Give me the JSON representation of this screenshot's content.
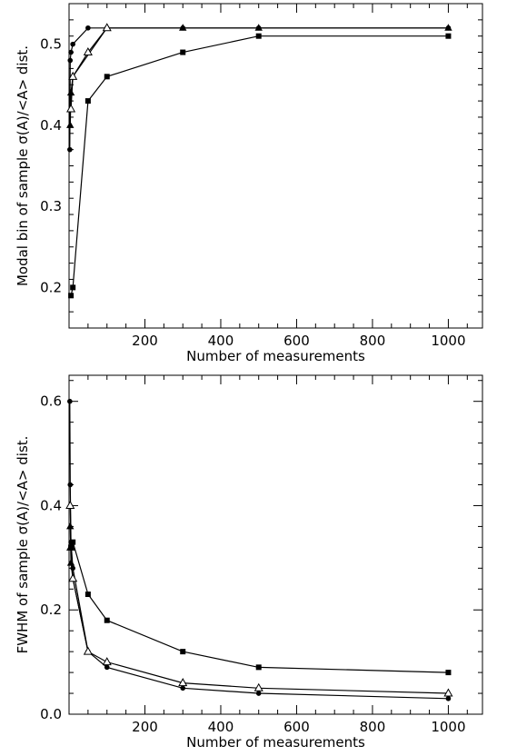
{
  "chart_data": [
    {
      "type": "line",
      "xlabel": "Number of measurements",
      "ylabel": "Modal bin of sample σ(A)/<A> dist.",
      "xlim": [
        0,
        1090
      ],
      "ylim": [
        0.15,
        0.55
      ],
      "xticks": [
        200,
        400,
        600,
        800,
        1000
      ],
      "yticks": [
        0.2,
        0.3,
        0.4,
        0.5
      ],
      "grid": false,
      "series": [
        {
          "marker": "circle-filled",
          "x": [
            2,
            3,
            5,
            10,
            50,
            100,
            300,
            500,
            1000
          ],
          "y": [
            0.37,
            0.48,
            0.49,
            0.5,
            0.52,
            0.52,
            0.52,
            0.52,
            0.52
          ]
        },
        {
          "marker": "triangle-filled",
          "x": [
            3,
            5,
            10,
            100,
            300,
            500,
            1000
          ],
          "y": [
            0.4,
            0.44,
            0.46,
            0.52,
            0.52,
            0.52,
            0.52
          ]
        },
        {
          "marker": "triangle-open",
          "x": [
            5,
            10,
            50,
            100
          ],
          "y": [
            0.42,
            0.46,
            0.49,
            0.52
          ]
        },
        {
          "marker": "square-filled",
          "x": [
            5,
            10,
            50,
            100,
            300,
            500,
            1000
          ],
          "y": [
            0.19,
            0.2,
            0.43,
            0.46,
            0.49,
            0.51,
            0.51
          ]
        }
      ]
    },
    {
      "type": "line",
      "xlabel": "Number of measurements",
      "ylabel": "FWHM of sample σ(A)/<A> dist.",
      "xlim": [
        0,
        1090
      ],
      "ylim": [
        0.0,
        0.65
      ],
      "xticks": [
        200,
        400,
        600,
        800,
        1000
      ],
      "yticks": [
        0.0,
        0.2,
        0.4,
        0.6
      ],
      "grid": false,
      "series": [
        {
          "marker": "circle-filled",
          "x": [
            2,
            3,
            5,
            10,
            50,
            100,
            300,
            500,
            1000
          ],
          "y": [
            0.6,
            0.44,
            0.33,
            0.28,
            0.12,
            0.09,
            0.05,
            0.04,
            0.03
          ]
        },
        {
          "marker": "triangle-filled",
          "x": [
            3,
            5,
            10,
            50
          ],
          "y": [
            0.36,
            0.29,
            0.26,
            0.12
          ]
        },
        {
          "marker": "triangle-open",
          "x": [
            3,
            5,
            10,
            50,
            100,
            300,
            500,
            1000
          ],
          "y": [
            0.4,
            0.32,
            0.26,
            0.12,
            0.1,
            0.06,
            0.05,
            0.04
          ]
        },
        {
          "marker": "square-filled",
          "x": [
            5,
            10,
            50,
            100,
            300,
            500,
            1000
          ],
          "y": [
            0.32,
            0.33,
            0.23,
            0.18,
            0.12,
            0.09,
            0.08
          ]
        }
      ]
    }
  ]
}
